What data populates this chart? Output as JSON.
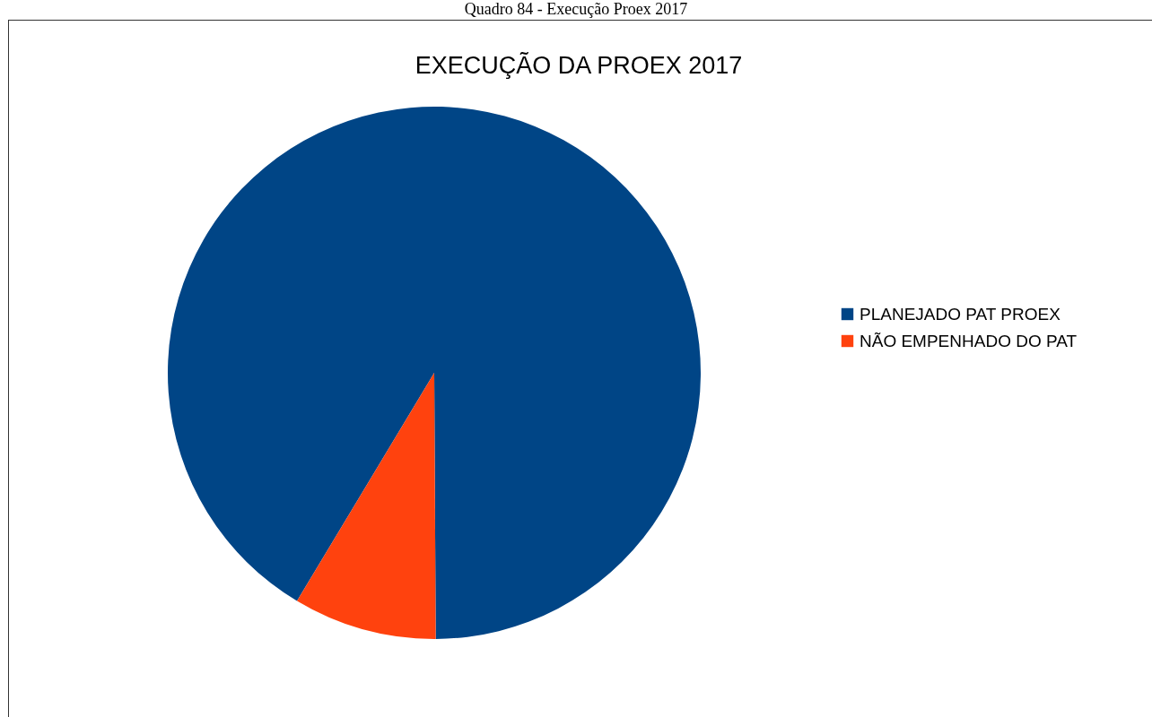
{
  "chart_data": {
    "type": "pie",
    "title": "EXECUÇÃO DA PROEX 2017",
    "annotations": [
      "Quadro 84 - Execução Proex 2017"
    ],
    "categories": [
      "PLANEJADO PAT PROEX",
      "NÃO EMPENHADO DO PAT"
    ],
    "values": [
      91.3,
      8.7
    ],
    "colors": [
      "#004586",
      "#ff420e"
    ],
    "legend": "right"
  }
}
